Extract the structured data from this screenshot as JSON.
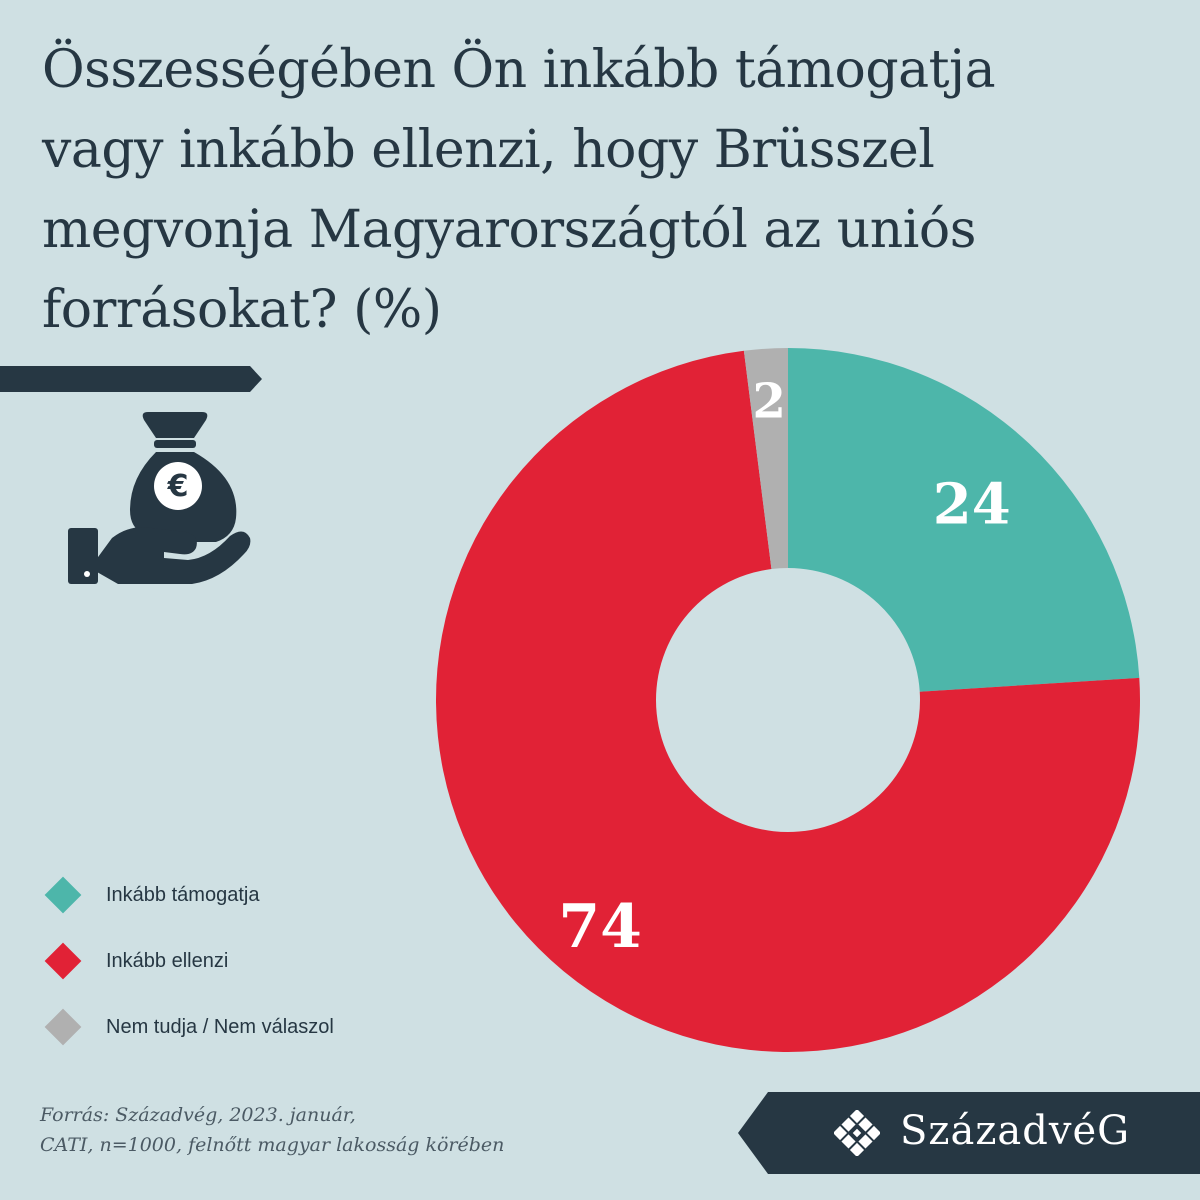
{
  "title_lines": [
    "Összességében Ön inkább támogatja",
    "vagy inkább ellenzi, hogy Brüsszel",
    "megvonja Magyarországtól az uniós",
    "forrásokat? (%)"
  ],
  "chart_data": {
    "type": "pie",
    "donut": true,
    "slices": [
      {
        "label": "Inkább támogatja",
        "value": 24,
        "color": "#4db6aa"
      },
      {
        "label": "Inkább ellenzi",
        "value": 74,
        "color": "#e12236"
      },
      {
        "label": "Nem tudja / Nem válaszol",
        "value": 2,
        "color": "#b0b0b0"
      }
    ],
    "legend_position": "bottom-left"
  },
  "source": {
    "line1": "Forrás: Századvég, 2023. január,",
    "line2": "CATI, n=1000, felnőtt magyar lakosság körében"
  },
  "brand": {
    "name": "SzázadvéG"
  },
  "icons": {
    "illustration": "money-bag-hand-icon",
    "brand": "brand-logo-icon"
  },
  "colors": {
    "background": "#cfe0e3",
    "dark": "#263743"
  }
}
